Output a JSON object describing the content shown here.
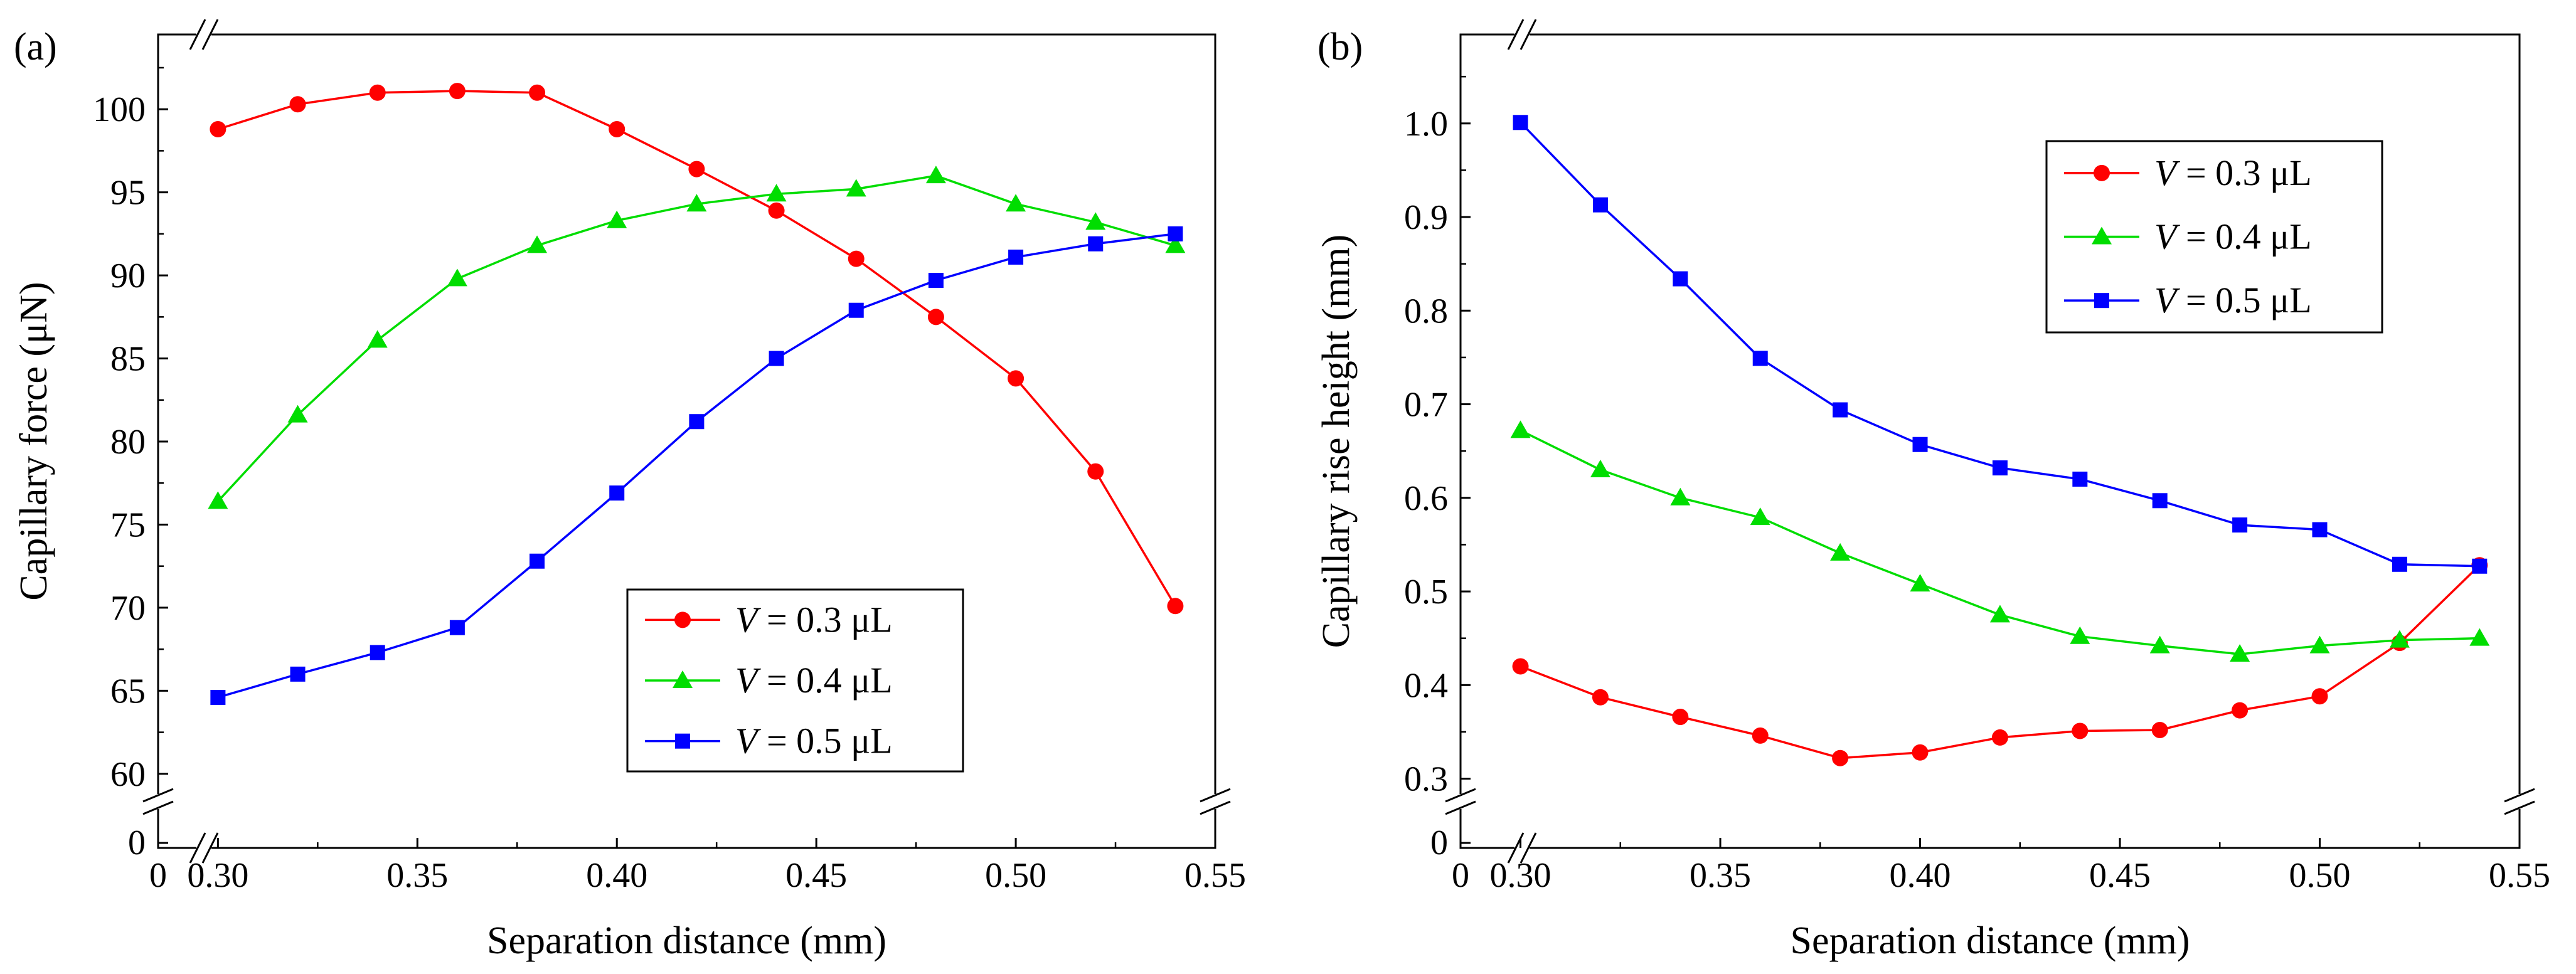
{
  "chart_data": [
    {
      "type": "line",
      "panel_label": "(a)",
      "xlabel": "Separation distance (mm)",
      "ylabel": "Capillary force (μN)",
      "x": [
        0.3,
        0.32,
        0.34,
        0.36,
        0.38,
        0.4,
        0.42,
        0.44,
        0.46,
        0.48,
        0.5,
        0.52,
        0.54
      ],
      "xlim": [
        0.285,
        0.55
      ],
      "ylim": [
        59.2,
        104.5
      ],
      "x_ticks": [
        0.3,
        0.35,
        0.4,
        0.45,
        0.5,
        0.55
      ],
      "x_tick_labels": [
        "0.30",
        "0.35",
        "0.40",
        "0.45",
        "0.50",
        "0.55"
      ],
      "y_ticks": [
        60,
        65,
        70,
        75,
        80,
        85,
        90,
        95,
        100
      ],
      "y_tick_labels": [
        "60",
        "65",
        "70",
        "75",
        "80",
        "85",
        "90",
        "95",
        "100"
      ],
      "axis_break": {
        "zero_x_label": "0",
        "zero_y_label": "0"
      },
      "legend": {
        "position": "bottom-right"
      },
      "series": [
        {
          "name_var": "V",
          "name_rest": " = 0.3 μL",
          "color": "#ff0000",
          "marker": "circle",
          "values": [
            98.8,
            100.3,
            101.0,
            101.1,
            101.0,
            98.8,
            96.4,
            93.9,
            91.0,
            87.5,
            83.8,
            78.2,
            70.1
          ]
        },
        {
          "name_var": "V",
          "name_rest": " = 0.4 μL",
          "color": "#00dd00",
          "marker": "triangle",
          "values": [
            76.4,
            81.6,
            86.1,
            89.8,
            91.8,
            93.3,
            94.3,
            94.9,
            95.2,
            96.0,
            94.3,
            93.2,
            91.8
          ]
        },
        {
          "name_var": "V",
          "name_rest": " = 0.5 μL",
          "color": "#0000ff",
          "marker": "square",
          "values": [
            64.6,
            66.0,
            67.3,
            68.8,
            72.8,
            76.9,
            81.2,
            85.0,
            87.9,
            89.7,
            91.1,
            91.9,
            92.5
          ]
        }
      ]
    },
    {
      "type": "line",
      "panel_label": "(b)",
      "xlabel": "Separation distance (mm)",
      "ylabel": "Capillary rise height (mm)",
      "x": [
        0.3,
        0.32,
        0.34,
        0.36,
        0.38,
        0.4,
        0.42,
        0.44,
        0.46,
        0.48,
        0.5,
        0.52,
        0.54
      ],
      "xlim": [
        0.285,
        0.55
      ],
      "ylim": [
        0.291,
        1.095
      ],
      "x_ticks": [
        0.3,
        0.35,
        0.4,
        0.45,
        0.5,
        0.55
      ],
      "x_tick_labels": [
        "0.30",
        "0.35",
        "0.40",
        "0.45",
        "0.50",
        "0.55"
      ],
      "y_ticks": [
        0.3,
        0.4,
        0.5,
        0.6,
        0.7,
        0.8,
        0.9,
        1.0
      ],
      "y_tick_labels": [
        "0.3",
        "0.4",
        "0.5",
        "0.6",
        "0.7",
        "0.8",
        "0.9",
        "1.0"
      ],
      "axis_break": {
        "zero_x_label": "0",
        "zero_y_label": "0"
      },
      "legend": {
        "position": "top-right"
      },
      "series": [
        {
          "name_var": "V",
          "name_rest": " = 0.3 μL",
          "color": "#ff0000",
          "marker": "circle",
          "values": [
            0.42,
            0.387,
            0.366,
            0.346,
            0.322,
            0.328,
            0.344,
            0.351,
            0.352,
            0.373,
            0.388,
            0.445,
            0.528
          ]
        },
        {
          "name_var": "V",
          "name_rest": " = 0.4 μL",
          "color": "#00dd00",
          "marker": "triangle",
          "values": [
            0.672,
            0.63,
            0.6,
            0.579,
            0.541,
            0.508,
            0.475,
            0.452,
            0.442,
            0.433,
            0.442,
            0.448,
            0.45
          ]
        },
        {
          "name_var": "V",
          "name_rest": " = 0.5 μL",
          "color": "#0000ff",
          "marker": "square",
          "values": [
            1.001,
            0.913,
            0.834,
            0.749,
            0.694,
            0.657,
            0.632,
            0.62,
            0.597,
            0.571,
            0.566,
            0.529,
            0.527
          ]
        }
      ]
    }
  ]
}
